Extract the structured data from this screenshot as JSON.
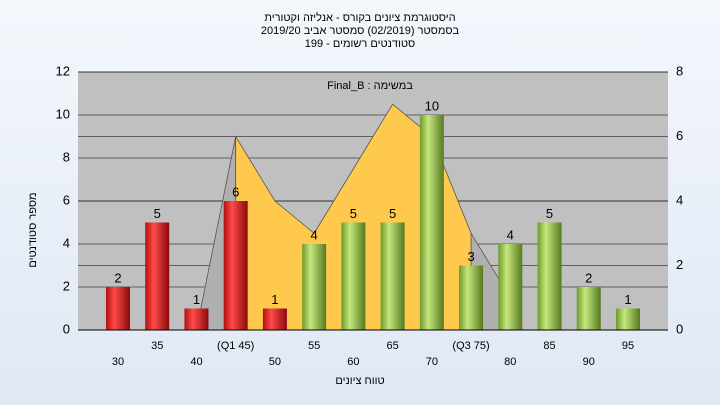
{
  "chart_data": {
    "type": "bar",
    "title": [
      "היסטוגרמת ציונים בקורס - אנליזה וקטורית",
      "בסמסטר  (02/2019)  סמסטר אביב 2019/20",
      "סטודנטים רשומים - 199"
    ],
    "annotation": "במשימה : Final_B",
    "x_label": "טווח ציונים",
    "y_label": "מספר סטודנטים",
    "categories": [
      "30",
      "35",
      "40",
      "(Q1 45)",
      "50",
      "55",
      "60",
      "65",
      "70",
      "(Q3 75)",
      "80",
      "85",
      "90",
      "95"
    ],
    "series": [
      {
        "values": [
          2,
          5,
          1,
          6,
          1,
          4,
          5,
          5,
          10,
          3,
          4,
          5,
          2,
          1
        ],
        "colors": [
          "red",
          "red",
          "red",
          "red",
          "red",
          "green",
          "green",
          "green",
          "green",
          "green",
          "green",
          "green",
          "green",
          "green"
        ]
      }
    ],
    "area_series": [
      {
        "color": "#b0b0b0",
        "axis": "y2",
        "values": [
          null,
          null,
          0,
          6,
          null,
          null,
          null,
          null,
          null,
          3,
          1,
          null,
          null,
          null
        ]
      },
      {
        "color": "#ffc94d",
        "axis": "y2",
        "values": [
          null,
          null,
          null,
          6,
          4,
          3,
          5,
          7,
          6,
          3,
          null,
          null,
          null,
          null
        ]
      }
    ],
    "ylim": [
      0,
      12
    ],
    "yticks": [
      0,
      2,
      4,
      6,
      8,
      10,
      12
    ],
    "y2lim": [
      0,
      8
    ],
    "y2ticks": [
      0,
      2,
      4,
      6,
      8
    ],
    "grid": true
  }
}
